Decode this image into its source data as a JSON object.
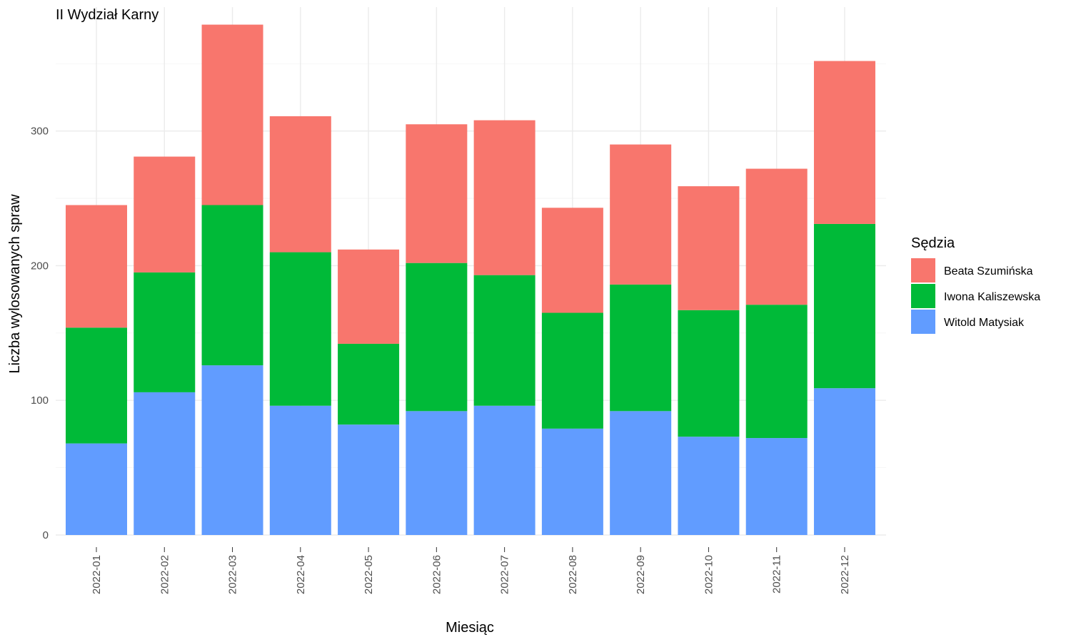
{
  "chart_data": {
    "type": "bar",
    "stacked": true,
    "title": "II Wydział Karny",
    "xlabel": "Miesiąc",
    "ylabel": "Liczba wylosowanych spraw",
    "ylim": [
      0,
      392
    ],
    "yticks": [
      0,
      100,
      200,
      300
    ],
    "grid": true,
    "legend": {
      "title": "Sędzia",
      "placement": "right"
    },
    "categories": [
      "2022-01",
      "2022-02",
      "2022-03",
      "2022-04",
      "2022-05",
      "2022-06",
      "2022-07",
      "2022-08",
      "2022-09",
      "2022-10",
      "2022-11",
      "2022-12"
    ],
    "series": [
      {
        "name": "Witold Matysiak",
        "color": "#619CFF",
        "values": [
          68,
          106,
          126,
          96,
          82,
          92,
          96,
          79,
          92,
          73,
          72,
          109
        ]
      },
      {
        "name": "Iwona Kaliszewska",
        "color": "#00BA38",
        "values": [
          86,
          89,
          119,
          114,
          60,
          110,
          97,
          86,
          94,
          94,
          99,
          122
        ]
      },
      {
        "name": "Beata Szumińska",
        "color": "#F8766D",
        "values": [
          91,
          86,
          134,
          101,
          70,
          103,
          115,
          78,
          104,
          92,
          101,
          121
        ]
      }
    ],
    "legend_order": [
      "Beata Szumińska",
      "Iwona Kaliszewska",
      "Witold Matysiak"
    ]
  }
}
